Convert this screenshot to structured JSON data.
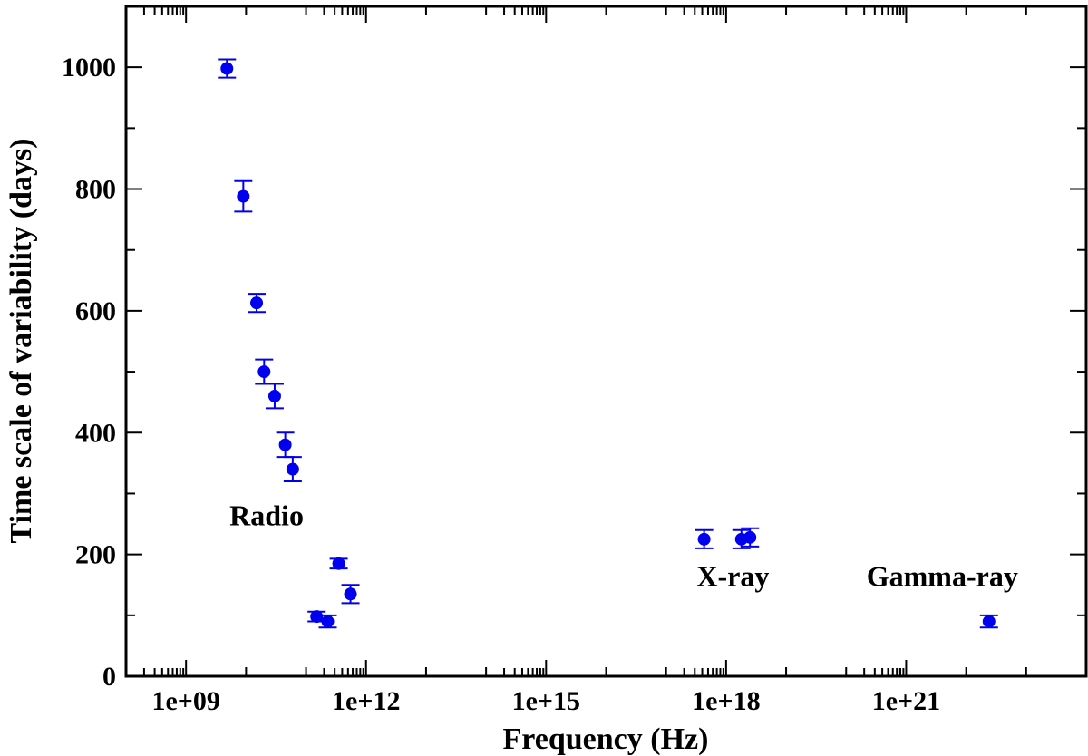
{
  "chart_data": {
    "type": "scatter",
    "title": "",
    "xlabel": "Frequency (Hz)",
    "ylabel": "Time scale of variability (days)",
    "xscale": "log",
    "xlim": [
      100000000.0,
      1e+24
    ],
    "ylim": [
      0,
      1100
    ],
    "grid": false,
    "legend": "none",
    "marker_color": "#0000ee",
    "x_ticks": [
      {
        "value": 1000000000.0,
        "label": "1e+09"
      },
      {
        "value": 1000000000000.0,
        "label": "1e+12"
      },
      {
        "value": 1000000000000000.0,
        "label": "1e+15"
      },
      {
        "value": 1e+18,
        "label": "1e+18"
      },
      {
        "value": 1e+21,
        "label": "1e+21"
      }
    ],
    "y_ticks": [
      {
        "value": 0,
        "label": "0"
      },
      {
        "value": 200,
        "label": "200"
      },
      {
        "value": 400,
        "label": "400"
      },
      {
        "value": 600,
        "label": "600"
      },
      {
        "value": 800,
        "label": "800"
      },
      {
        "value": 1000,
        "label": "1000"
      }
    ],
    "points": [
      {
        "x": 4800000000.0,
        "y": 998,
        "err": 15
      },
      {
        "x": 9000000000.0,
        "y": 788,
        "err": 25
      },
      {
        "x": 15000000000.0,
        "y": 613,
        "err": 15
      },
      {
        "x": 20000000000.0,
        "y": 500,
        "err": 20
      },
      {
        "x": 30000000000.0,
        "y": 460,
        "err": 20
      },
      {
        "x": 45000000000.0,
        "y": 380,
        "err": 20
      },
      {
        "x": 60000000000.0,
        "y": 340,
        "err": 20
      },
      {
        "x": 150000000000.0,
        "y": 98,
        "err": 8
      },
      {
        "x": 230000000000.0,
        "y": 90,
        "err": 10
      },
      {
        "x": 350000000000.0,
        "y": 185,
        "err": 8
      },
      {
        "x": 550000000000.0,
        "y": 135,
        "err": 15
      },
      {
        "x": 4.3e+17,
        "y": 225,
        "err": 15
      },
      {
        "x": 1.8e+18,
        "y": 225,
        "err": 15
      },
      {
        "x": 2.5e+18,
        "y": 228,
        "err": 15
      },
      {
        "x": 2.4e+22,
        "y": 90,
        "err": 10
      }
    ],
    "annotations": [
      {
        "text": "Radio",
        "x": 22000000000.0,
        "y": 248
      },
      {
        "text": "X-ray",
        "x": 1.3e+18,
        "y": 148
      },
      {
        "text": "Gamma-ray",
        "x": 4e+21,
        "y": 148
      }
    ]
  }
}
